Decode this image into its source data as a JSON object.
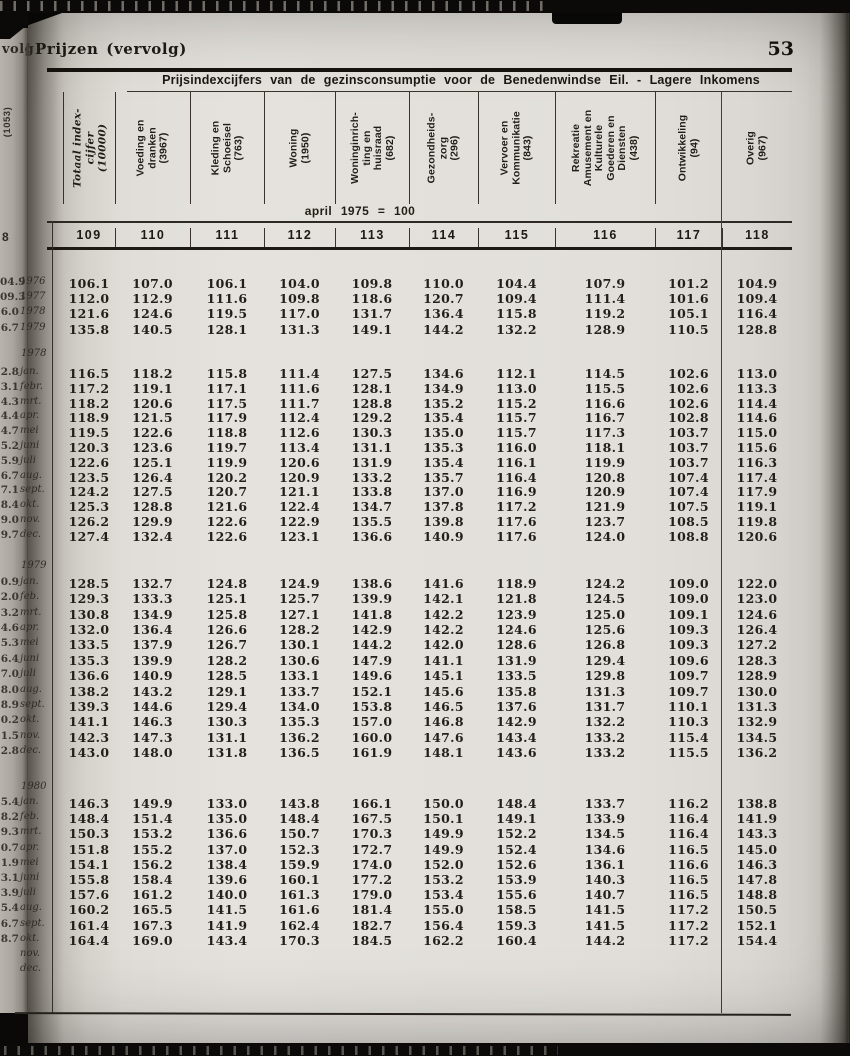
{
  "page": {
    "left_page_fragment": "volg",
    "left_page_rotated_header": "(1053)",
    "left_page_cut_column_number": "8",
    "section_title": "Prijzen (vervolg)",
    "page_number": "53",
    "table_title": "Prijsindexcijfers van de gezinsconsumptie voor de Benedenwindse Eil. - Lagere Inkomens",
    "base_period_note": "april 1975 = 100"
  },
  "table": {
    "column_numbers": [
      "109",
      "110",
      "111",
      "112",
      "113",
      "114",
      "115",
      "116",
      "117",
      "118"
    ],
    "column_headers": [
      {
        "lines": [
          "Totaal index-",
          "cijfer",
          "(10000)"
        ],
        "italic": true
      },
      {
        "lines": [
          "Voeding en",
          "dranken",
          "(3967)"
        ]
      },
      {
        "lines": [
          "Kleding en",
          "Schoeisel",
          "(763)"
        ]
      },
      {
        "lines": [
          "Woning",
          "(1950)"
        ]
      },
      {
        "lines": [
          "Woninginrich-",
          "ting en",
          "huisraad",
          "(682)"
        ]
      },
      {
        "lines": [
          "Gezondheids-",
          "zorg",
          "(296)"
        ]
      },
      {
        "lines": [
          "Vervoer en",
          "Kommunikatie",
          "(843)"
        ]
      },
      {
        "lines": [
          "Rekreatie",
          "Amusement en",
          "Kulturele",
          "Goederen en",
          "Diensten",
          "(438)"
        ]
      },
      {
        "lines": [
          "Ontwikkeling",
          "(94)"
        ]
      },
      {
        "lines": [
          "Overig",
          "(967)"
        ]
      }
    ],
    "blocks": [
      {
        "year_label": "",
        "rows": [
          {
            "cut": "04.9",
            "label": "1976",
            "values": [
              "106.1",
              "107.0",
              "106.1",
              "104.0",
              "109.8",
              "110.0",
              "104.4",
              "107.9",
              "101.2",
              "104.9"
            ]
          },
          {
            "cut": "09.3",
            "label": "1977",
            "values": [
              "112.0",
              "112.9",
              "111.6",
              "109.8",
              "118.6",
              "120.7",
              "109.4",
              "111.4",
              "101.6",
              "109.4"
            ]
          },
          {
            "cut": "6.0",
            "label": "1978",
            "values": [
              "121.6",
              "124.6",
              "119.5",
              "117.0",
              "131.7",
              "136.4",
              "115.8",
              "119.2",
              "105.1",
              "116.4"
            ]
          },
          {
            "cut": "6.7",
            "label": "1979",
            "values": [
              "135.8",
              "140.5",
              "128.1",
              "131.3",
              "149.1",
              "144.2",
              "132.2",
              "128.9",
              "110.5",
              "128.8"
            ]
          }
        ]
      },
      {
        "year_label": "1978",
        "rows": [
          {
            "cut": "2.8",
            "label": "jan.",
            "values": [
              "116.5",
              "118.2",
              "115.8",
              "111.4",
              "127.5",
              "134.6",
              "112.1",
              "114.5",
              "102.6",
              "113.0"
            ]
          },
          {
            "cut": "3.1",
            "label": "febr.",
            "values": [
              "117.2",
              "119.1",
              "117.1",
              "111.6",
              "128.1",
              "134.9",
              "113.0",
              "115.5",
              "102.6",
              "113.3"
            ]
          },
          {
            "cut": "4.3",
            "label": "mrt.",
            "values": [
              "118.2",
              "120.6",
              "117.5",
              "111.7",
              "128.8",
              "135.2",
              "115.2",
              "116.6",
              "102.6",
              "114.4"
            ]
          },
          {
            "cut": "4.4",
            "label": "apr.",
            "values": [
              "118.9",
              "121.5",
              "117.9",
              "112.4",
              "129.2",
              "135.4",
              "115.7",
              "116.7",
              "102.8",
              "114.6"
            ]
          },
          {
            "cut": "4.7",
            "label": "mei",
            "values": [
              "119.5",
              "122.6",
              "118.8",
              "112.6",
              "130.3",
              "135.0",
              "115.7",
              "117.3",
              "103.7",
              "115.0"
            ]
          },
          {
            "cut": "5.2",
            "label": "juni",
            "values": [
              "120.3",
              "123.6",
              "119.7",
              "113.4",
              "131.1",
              "135.3",
              "116.0",
              "118.1",
              "103.7",
              "115.6"
            ]
          },
          {
            "cut": "5.9",
            "label": "juli",
            "values": [
              "122.6",
              "125.1",
              "119.9",
              "120.6",
              "131.9",
              "135.4",
              "116.1",
              "119.9",
              "103.7",
              "116.3"
            ]
          },
          {
            "cut": "6.7",
            "label": "aug.",
            "values": [
              "123.5",
              "126.4",
              "120.2",
              "120.9",
              "133.2",
              "135.7",
              "116.4",
              "120.8",
              "107.4",
              "117.4"
            ]
          },
          {
            "cut": "7.1",
            "label": "sept.",
            "values": [
              "124.2",
              "127.5",
              "120.7",
              "121.1",
              "133.8",
              "137.0",
              "116.9",
              "120.9",
              "107.4",
              "117.9"
            ]
          },
          {
            "cut": "8.4",
            "label": "okt.",
            "values": [
              "125.3",
              "128.8",
              "121.6",
              "122.4",
              "134.7",
              "137.8",
              "117.2",
              "121.9",
              "107.5",
              "119.1"
            ]
          },
          {
            "cut": "9.0",
            "label": "nov.",
            "values": [
              "126.2",
              "129.9",
              "122.6",
              "122.9",
              "135.5",
              "139.8",
              "117.6",
              "123.7",
              "108.5",
              "119.8"
            ]
          },
          {
            "cut": "9.7",
            "label": "dec.",
            "values": [
              "127.4",
              "132.4",
              "122.6",
              "123.1",
              "136.6",
              "140.9",
              "117.6",
              "124.0",
              "108.8",
              "120.6"
            ]
          }
        ]
      },
      {
        "year_label": "1979",
        "rows": [
          {
            "cut": "0.9",
            "label": "jan.",
            "values": [
              "128.5",
              "132.7",
              "124.8",
              "124.9",
              "138.6",
              "141.6",
              "118.9",
              "124.2",
              "109.0",
              "122.0"
            ]
          },
          {
            "cut": "2.0",
            "label": "feb.",
            "values": [
              "129.3",
              "133.3",
              "125.1",
              "125.7",
              "139.9",
              "142.1",
              "121.8",
              "124.5",
              "109.0",
              "123.0"
            ]
          },
          {
            "cut": "3.2",
            "label": "mrt.",
            "values": [
              "130.8",
              "134.9",
              "125.8",
              "127.1",
              "141.8",
              "142.2",
              "123.9",
              "125.0",
              "109.1",
              "124.6"
            ]
          },
          {
            "cut": "4.6",
            "label": "apr.",
            "values": [
              "132.0",
              "136.4",
              "126.6",
              "128.2",
              "142.9",
              "142.2",
              "124.6",
              "125.6",
              "109.3",
              "126.4"
            ]
          },
          {
            "cut": "5.3",
            "label": "mei",
            "values": [
              "133.5",
              "137.9",
              "126.7",
              "130.1",
              "144.2",
              "142.0",
              "128.6",
              "126.8",
              "109.3",
              "127.2"
            ]
          },
          {
            "cut": "6.4",
            "label": "juni",
            "values": [
              "135.3",
              "139.9",
              "128.2",
              "130.6",
              "147.9",
              "141.1",
              "131.9",
              "129.4",
              "109.6",
              "128.3"
            ]
          },
          {
            "cut": "7.0",
            "label": "juli",
            "values": [
              "136.6",
              "140.9",
              "128.5",
              "133.1",
              "149.6",
              "145.1",
              "133.5",
              "129.8",
              "109.7",
              "128.9"
            ]
          },
          {
            "cut": "8.0",
            "label": "aug.",
            "values": [
              "138.2",
              "143.2",
              "129.1",
              "133.7",
              "152.1",
              "145.6",
              "135.8",
              "131.3",
              "109.7",
              "130.0"
            ]
          },
          {
            "cut": "8.9",
            "label": "sept.",
            "values": [
              "139.3",
              "144.6",
              "129.4",
              "134.0",
              "153.8",
              "146.5",
              "137.6",
              "131.7",
              "110.1",
              "131.3"
            ]
          },
          {
            "cut": "0.2",
            "label": "okt.",
            "values": [
              "141.1",
              "146.3",
              "130.3",
              "135.3",
              "157.0",
              "146.8",
              "142.9",
              "132.2",
              "110.3",
              "132.9"
            ]
          },
          {
            "cut": "1.5",
            "label": "nov.",
            "values": [
              "142.3",
              "147.3",
              "131.1",
              "136.2",
              "160.0",
              "147.6",
              "143.4",
              "133.2",
              "115.4",
              "134.5"
            ]
          },
          {
            "cut": "2.8",
            "label": "dec.",
            "values": [
              "143.0",
              "148.0",
              "131.8",
              "136.5",
              "161.9",
              "148.1",
              "143.6",
              "133.2",
              "115.5",
              "136.2"
            ]
          }
        ]
      },
      {
        "year_label": "1980",
        "rows": [
          {
            "cut": "5.4",
            "label": "jan.",
            "values": [
              "146.3",
              "149.9",
              "133.0",
              "143.8",
              "166.1",
              "150.0",
              "148.4",
              "133.7",
              "116.2",
              "138.8"
            ]
          },
          {
            "cut": "8.2",
            "label": "feb.",
            "values": [
              "148.4",
              "151.4",
              "135.0",
              "148.4",
              "167.5",
              "150.1",
              "149.1",
              "133.9",
              "116.4",
              "141.9"
            ]
          },
          {
            "cut": "9.3",
            "label": "mrt.",
            "values": [
              "150.3",
              "153.2",
              "136.6",
              "150.7",
              "170.3",
              "149.9",
              "152.2",
              "134.5",
              "116.4",
              "143.3"
            ]
          },
          {
            "cut": "0.7",
            "label": "apr.",
            "values": [
              "151.8",
              "155.2",
              "137.0",
              "152.3",
              "172.7",
              "149.9",
              "152.4",
              "134.6",
              "116.5",
              "145.0"
            ]
          },
          {
            "cut": "1.9",
            "label": "mei",
            "values": [
              "154.1",
              "156.2",
              "138.4",
              "159.9",
              "174.0",
              "152.0",
              "152.6",
              "136.1",
              "116.6",
              "146.3"
            ]
          },
          {
            "cut": "3.1",
            "label": "juni",
            "values": [
              "155.8",
              "158.4",
              "139.6",
              "160.1",
              "177.2",
              "153.2",
              "153.9",
              "140.3",
              "116.5",
              "147.8"
            ]
          },
          {
            "cut": "3.9",
            "label": "juli",
            "values": [
              "157.6",
              "161.2",
              "140.0",
              "161.3",
              "179.0",
              "153.4",
              "155.6",
              "140.7",
              "116.5",
              "148.8"
            ]
          },
          {
            "cut": "5.4",
            "label": "aug.",
            "values": [
              "160.2",
              "165.5",
              "141.5",
              "161.6",
              "181.4",
              "155.0",
              "158.5",
              "141.5",
              "117.2",
              "150.5"
            ]
          },
          {
            "cut": "6.7",
            "label": "sept.",
            "values": [
              "161.4",
              "167.3",
              "141.9",
              "162.4",
              "182.7",
              "156.4",
              "159.3",
              "141.5",
              "117.2",
              "152.1"
            ]
          },
          {
            "cut": "8.7",
            "label": "okt.",
            "values": [
              "164.4",
              "169.0",
              "143.4",
              "170.3",
              "184.5",
              "162.2",
              "160.4",
              "144.2",
              "117.2",
              "154.4"
            ]
          },
          {
            "cut": "",
            "label": "nov.",
            "values": []
          },
          {
            "cut": "",
            "label": "dec.",
            "values": []
          }
        ]
      }
    ]
  }
}
